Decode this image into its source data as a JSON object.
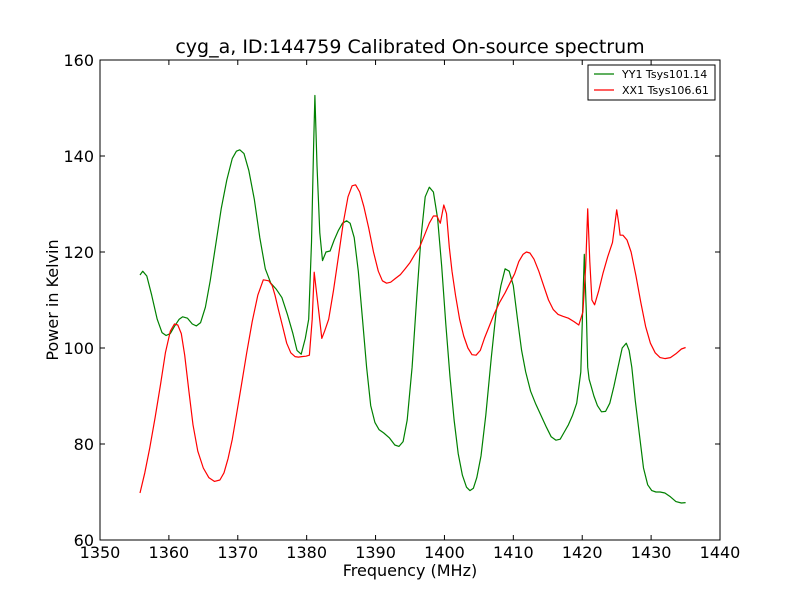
{
  "chart_data": {
    "type": "line",
    "title": "cyg_a, ID:144759 Calibrated On-source spectrum",
    "xlabel": "Frequency (MHz)",
    "ylabel": "Power in Kelvin",
    "xlim": [
      1350,
      1440
    ],
    "ylim": [
      60,
      160
    ],
    "xticks": [
      1350,
      1360,
      1370,
      1380,
      1390,
      1400,
      1410,
      1420,
      1430,
      1440
    ],
    "yticks": [
      60,
      80,
      100,
      120,
      140,
      160
    ],
    "grid": false,
    "legend_position": "top-right",
    "series": [
      {
        "name": "YY1 Tsys101.14",
        "color": "#008000",
        "x": [
          1355.8,
          1356.2,
          1356.8,
          1357.5,
          1358.3,
          1359.0,
          1359.6,
          1360.2,
          1360.8,
          1361.5,
          1362.0,
          1362.7,
          1363.4,
          1364.0,
          1364.6,
          1365.3,
          1366.0,
          1366.8,
          1367.6,
          1368.4,
          1369.2,
          1369.8,
          1370.3,
          1370.9,
          1371.6,
          1372.4,
          1373.2,
          1374.0,
          1374.8,
          1375.6,
          1376.4,
          1377.2,
          1378.0,
          1378.6,
          1379.2,
          1379.8,
          1380.3,
          1380.7,
          1381.0,
          1381.2,
          1381.5,
          1381.9,
          1382.3,
          1382.8,
          1383.4,
          1384.0,
          1384.6,
          1385.2,
          1385.8,
          1386.3,
          1386.9,
          1387.5,
          1388.1,
          1388.7,
          1389.3,
          1389.9,
          1390.5,
          1391.2,
          1392.0,
          1392.8,
          1393.4,
          1394.0,
          1394.6,
          1395.3,
          1396.0,
          1396.6,
          1397.2,
          1397.8,
          1398.4,
          1399.0,
          1399.6,
          1400.2,
          1400.8,
          1401.4,
          1402.0,
          1402.6,
          1403.2,
          1403.7,
          1404.2,
          1404.7,
          1405.3,
          1406.0,
          1406.8,
          1407.5,
          1408.2,
          1408.8,
          1409.4,
          1410.0,
          1410.6,
          1411.2,
          1411.8,
          1412.5,
          1413.2,
          1414.0,
          1414.8,
          1415.5,
          1416.2,
          1416.8,
          1417.4,
          1418.0,
          1418.6,
          1419.2,
          1419.8,
          1420.3,
          1420.6,
          1420.8,
          1421.0,
          1421.3,
          1421.7,
          1422.2,
          1422.8,
          1423.4,
          1424.0,
          1424.6,
          1425.2,
          1425.8,
          1426.4,
          1426.8,
          1427.2,
          1427.7,
          1428.3,
          1428.9,
          1429.5,
          1430.1,
          1430.7,
          1431.3,
          1432.0,
          1432.8,
          1433.6,
          1434.4,
          1435.0
        ],
        "values": [
          115.2,
          116.0,
          115.0,
          111.0,
          106.0,
          103.2,
          102.6,
          103.0,
          104.5,
          106.0,
          106.5,
          106.2,
          105.0,
          104.6,
          105.3,
          108.5,
          114.0,
          121.5,
          129.0,
          135.0,
          139.5,
          141.0,
          141.3,
          140.5,
          137.0,
          131.0,
          123.0,
          116.5,
          113.5,
          112.2,
          110.5,
          107.0,
          103.0,
          99.5,
          98.7,
          102.0,
          106.0,
          122.0,
          142.0,
          152.6,
          138.0,
          124.0,
          118.2,
          120.0,
          120.2,
          122.5,
          124.5,
          126.0,
          126.5,
          126.0,
          123.0,
          116.0,
          106.0,
          96.0,
          88.0,
          84.5,
          83.0,
          82.3,
          81.3,
          79.8,
          79.5,
          80.5,
          85.0,
          96.0,
          111.0,
          123.0,
          131.5,
          133.5,
          132.5,
          127.0,
          117.0,
          105.0,
          94.0,
          85.0,
          78.0,
          73.5,
          71.0,
          70.3,
          70.8,
          73.0,
          77.5,
          86.0,
          98.0,
          107.5,
          113.0,
          116.5,
          116.0,
          113.0,
          106.0,
          99.5,
          95.0,
          91.0,
          88.5,
          86.0,
          83.5,
          81.5,
          80.8,
          81.0,
          82.5,
          84.0,
          86.0,
          88.5,
          95.0,
          119.5,
          107.0,
          96.0,
          93.5,
          92.0,
          90.0,
          88.0,
          86.7,
          86.8,
          88.5,
          92.0,
          96.0,
          100.0,
          101.0,
          99.5,
          96.0,
          89.0,
          82.0,
          75.0,
          71.5,
          70.3,
          70.0,
          70.0,
          69.8,
          69.0,
          68.0,
          67.7,
          67.8
        ]
      },
      {
        "name": "XX1 Tsys106.61",
        "color": "#ff0000",
        "x": [
          1355.8,
          1356.5,
          1357.2,
          1358.0,
          1358.8,
          1359.5,
          1360.2,
          1360.8,
          1361.3,
          1361.8,
          1362.3,
          1362.9,
          1363.5,
          1364.2,
          1365.0,
          1365.8,
          1366.6,
          1367.4,
          1368.0,
          1368.6,
          1369.2,
          1369.8,
          1370.5,
          1371.3,
          1372.1,
          1372.9,
          1373.7,
          1374.5,
          1375.0,
          1375.4,
          1375.9,
          1376.5,
          1377.1,
          1377.7,
          1378.3,
          1378.8,
          1379.3,
          1379.9,
          1380.4,
          1380.8,
          1381.1,
          1381.4,
          1381.8,
          1382.2,
          1382.6,
          1383.2,
          1383.9,
          1384.6,
          1385.3,
          1386.0,
          1386.6,
          1387.1,
          1387.7,
          1388.3,
          1389.0,
          1389.7,
          1390.4,
          1391.0,
          1391.6,
          1392.2,
          1392.9,
          1393.6,
          1394.3,
          1395.0,
          1395.7,
          1396.4,
          1397.1,
          1397.8,
          1398.4,
          1398.9,
          1399.4,
          1399.9,
          1400.3,
          1400.7,
          1401.1,
          1401.6,
          1402.2,
          1402.8,
          1403.4,
          1404.0,
          1404.6,
          1405.2,
          1405.8,
          1406.5,
          1407.2,
          1408.0,
          1408.8,
          1409.5,
          1410.2,
          1410.8,
          1411.4,
          1411.9,
          1412.4,
          1413.0,
          1413.7,
          1414.4,
          1415.1,
          1415.8,
          1416.5,
          1417.2,
          1418.0,
          1418.8,
          1419.5,
          1420.1,
          1420.5,
          1420.8,
          1421.1,
          1421.4,
          1421.8,
          1422.4,
          1423.0,
          1423.7,
          1424.4,
          1425.0,
          1425.3,
          1425.5,
          1425.9,
          1426.5,
          1427.1,
          1427.8,
          1428.5,
          1429.2,
          1429.9,
          1430.6,
          1431.3,
          1432.0,
          1432.8,
          1433.6,
          1434.4,
          1435.0
        ],
        "values": [
          69.8,
          74.0,
          79.0,
          85.5,
          92.5,
          99.0,
          103.5,
          105.0,
          104.8,
          103.0,
          98.5,
          91.0,
          84.0,
          78.5,
          75.0,
          73.0,
          72.2,
          72.5,
          74.0,
          77.0,
          81.0,
          86.0,
          92.0,
          99.0,
          105.5,
          111.0,
          114.2,
          114.0,
          113.0,
          111.0,
          108.0,
          104.5,
          101.0,
          99.0,
          98.2,
          98.1,
          98.2,
          98.3,
          98.5,
          106.0,
          115.8,
          112.0,
          107.0,
          102.0,
          103.5,
          106.0,
          112.0,
          119.0,
          126.0,
          131.5,
          133.8,
          134.0,
          132.5,
          129.5,
          125.0,
          120.0,
          116.0,
          114.0,
          113.5,
          113.7,
          114.5,
          115.3,
          116.5,
          117.8,
          119.5,
          121.0,
          123.5,
          126.0,
          127.5,
          127.5,
          126.0,
          129.8,
          128.0,
          121.0,
          116.0,
          111.0,
          106.0,
          102.5,
          100.0,
          98.6,
          98.5,
          99.5,
          102.0,
          104.5,
          107.0,
          109.5,
          111.5,
          113.5,
          115.5,
          118.0,
          119.5,
          120.0,
          119.8,
          118.5,
          116.0,
          113.0,
          110.0,
          108.0,
          107.0,
          106.6,
          106.2,
          105.5,
          104.8,
          107.5,
          117.0,
          129.0,
          118.0,
          110.0,
          109.0,
          112.0,
          115.5,
          119.0,
          122.0,
          128.8,
          126.0,
          123.5,
          123.5,
          122.5,
          120.0,
          115.0,
          109.5,
          104.5,
          101.0,
          99.0,
          98.0,
          97.8,
          98.0,
          98.8,
          99.8,
          100.1
        ]
      }
    ]
  }
}
